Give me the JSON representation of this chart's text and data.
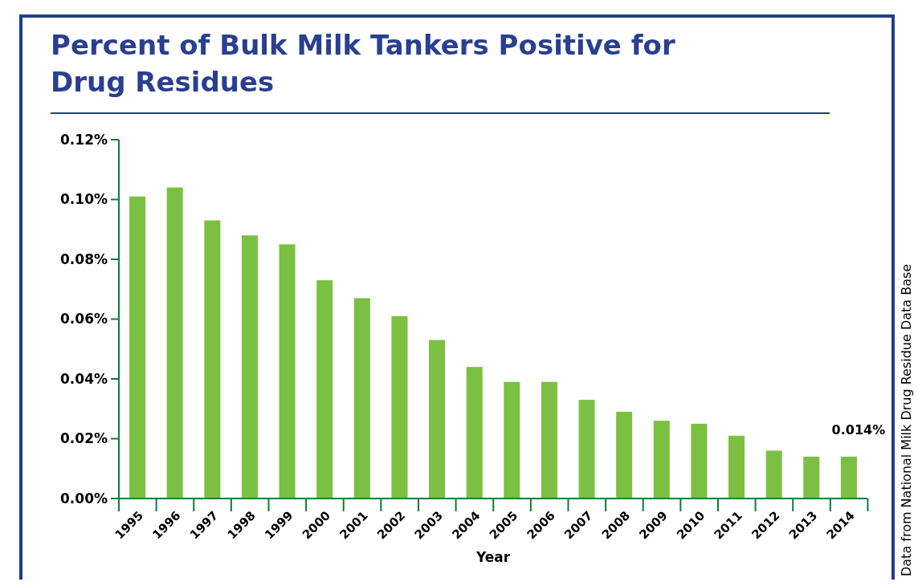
{
  "chart_data": {
    "type": "bar",
    "title": "Percent of Bulk Milk Tankers Positive for Drug Residues",
    "xlabel": "Year",
    "categories": [
      "1995",
      "1996",
      "1997",
      "1998",
      "1999",
      "2000",
      "2001",
      "2002",
      "2003",
      "2004",
      "2005",
      "2006",
      "2007",
      "2008",
      "2009",
      "2010",
      "2011",
      "2012",
      "2013",
      "2014"
    ],
    "values": [
      0.101,
      0.104,
      0.093,
      0.088,
      0.085,
      0.073,
      0.067,
      0.061,
      0.053,
      0.044,
      0.039,
      0.039,
      0.033,
      0.029,
      0.026,
      0.025,
      0.021,
      0.016,
      0.014,
      0.014
    ],
    "color": "#7bc043",
    "ylim": [
      0,
      0.12
    ],
    "yticks": [
      {
        "value": 0,
        "label": "0.00%"
      },
      {
        "value": 0.02,
        "label": "0.02%"
      },
      {
        "value": 0.04,
        "label": "0.04%"
      },
      {
        "value": 0.06,
        "label": "0.06%"
      },
      {
        "value": 0.08,
        "label": "0.08%"
      },
      {
        "value": 0.1,
        "label": "0.10%"
      },
      {
        "value": 0.12,
        "label": "0.12%"
      }
    ],
    "grid": false,
    "annotations": [
      {
        "text": "0.014%",
        "x": "2014",
        "y": 0.014
      },
      "Data from National Milk Drug Residue Data Base"
    ]
  }
}
